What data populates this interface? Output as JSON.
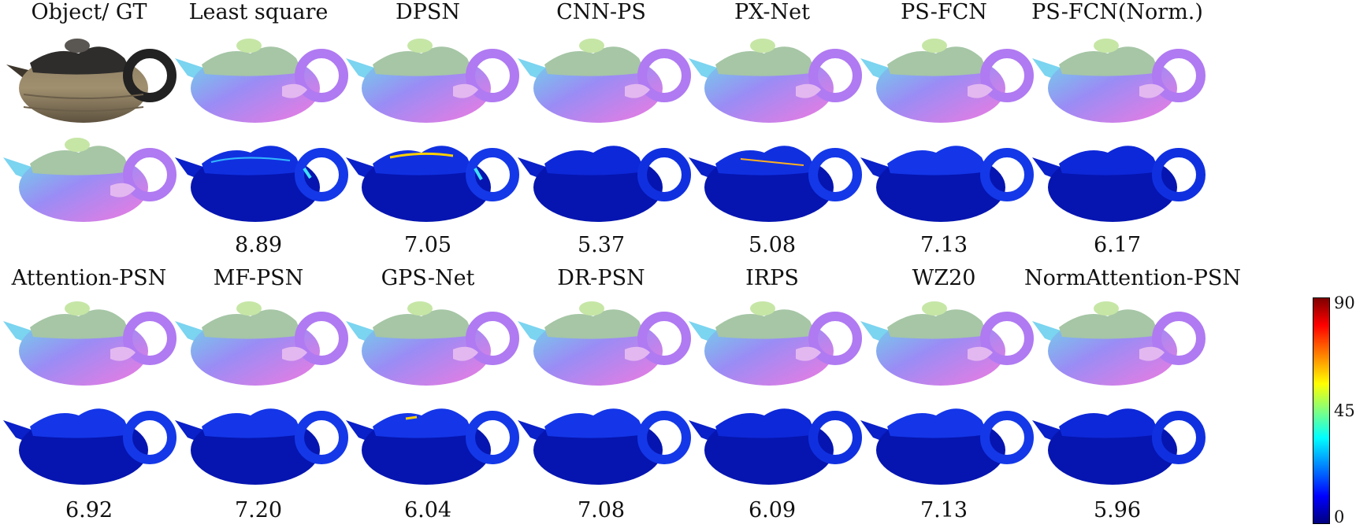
{
  "figure": {
    "top_titles": [
      "Object/ GT",
      "Least square",
      "DPSN",
      "CNN-PS",
      "PX-Net",
      "PS-FCN",
      "PS-FCN(Norm.)"
    ],
    "top_errors": [
      "",
      "8.89",
      "7.05",
      "5.37",
      "5.08",
      "7.13",
      "6.17"
    ],
    "bottom_titles": [
      "Attention-PSN",
      "MF-PSN",
      "GPS-Net",
      "DR-PSN",
      "IRPS",
      "WZ20",
      "NormAttention-PSN"
    ],
    "bottom_errors": [
      "6.92",
      "7.20",
      "6.04",
      "7.08",
      "6.09",
      "7.13",
      "5.96"
    ],
    "colorbar": {
      "max_label": "90",
      "mid_label": "45",
      "min_label": "0",
      "colors": [
        "#00007f",
        "#0000ff",
        "#00ffff",
        "#7fff7f",
        "#ffff00",
        "#ff0000",
        "#7f0000"
      ]
    },
    "image_kinds": {
      "object": "photo-teapot",
      "normal": "normal-map-teapot",
      "error": "error-map-teapot"
    }
  }
}
